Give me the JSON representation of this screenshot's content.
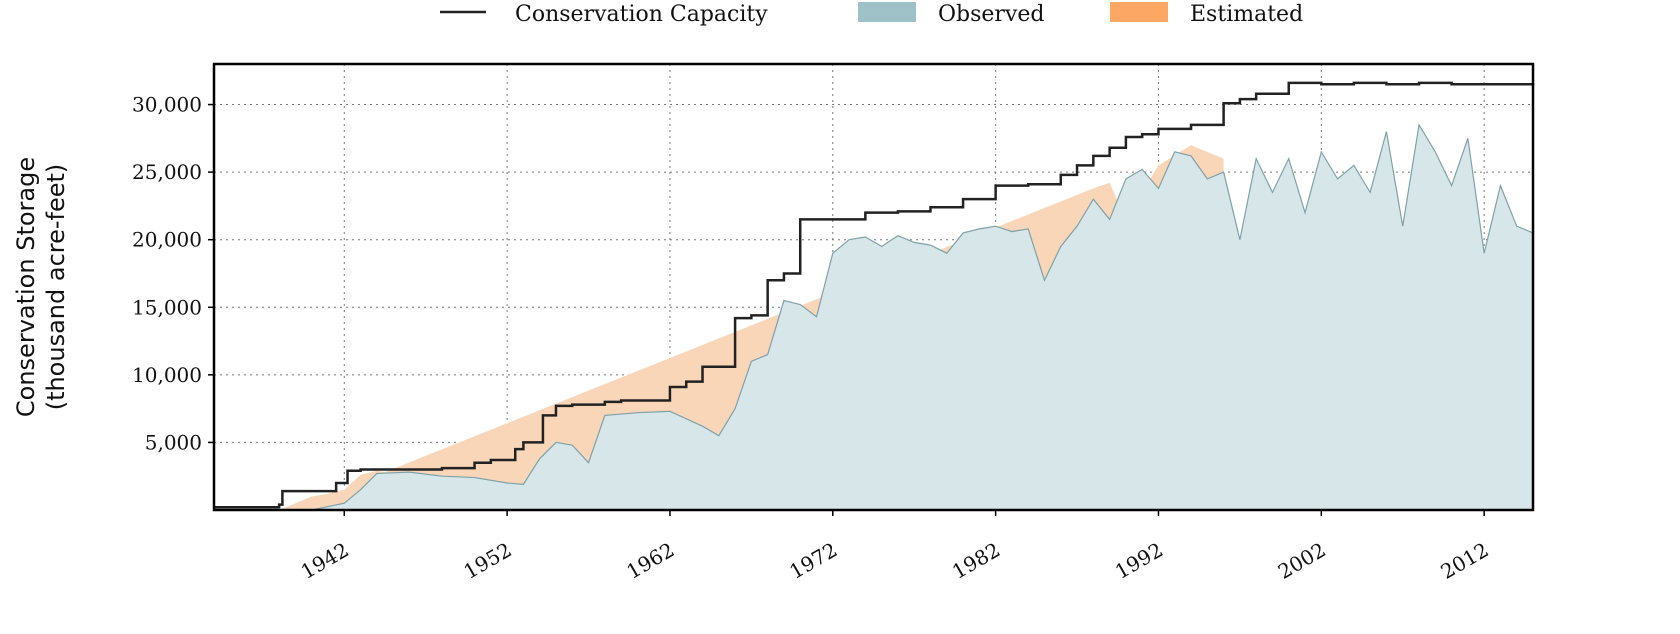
{
  "chart_data": {
    "type": "area",
    "title": "",
    "xlabel": "",
    "ylabel": "Conservation Storage",
    "ylabel_units": "(thousand acre-feet)",
    "xlim": [
      1934,
      2015
    ],
    "ylim": [
      0,
      33000
    ],
    "x_ticks": [
      1942,
      1952,
      1962,
      1972,
      1982,
      1992,
      2002,
      2012
    ],
    "y_ticks": [
      5000,
      10000,
      15000,
      20000,
      25000,
      30000
    ],
    "grid": true,
    "legend_position": "top",
    "colors": {
      "capacity": "#222222",
      "observed_fill": "#d7e6e9",
      "observed_line": "#7fa1a8",
      "observed_legend": "#9fc1c8",
      "estimated_fill": "#f9d6b8",
      "estimated_legend": "#fda764"
    },
    "series": [
      {
        "name": "Conservation Capacity",
        "kind": "step-line",
        "x": [
          1934,
          1938,
          1938.2,
          1941.5,
          1942.2,
          1943,
          1945,
          1948,
          1950,
          1951,
          1952.5,
          1953,
          1954.2,
          1955,
          1956,
          1958,
          1959,
          1962,
          1963,
          1964,
          1966,
          1967,
          1968,
          1969,
          1970,
          1972,
          1974,
          1976,
          1978,
          1980,
          1982,
          1984,
          1986,
          1987,
          1988,
          1989,
          1990,
          1991,
          1992,
          1994,
          1996,
          1997,
          1998,
          2000,
          2002,
          2004,
          2006,
          2008,
          2010,
          2012,
          2015
        ],
        "values": [
          200,
          400,
          1400,
          2000,
          2900,
          3000,
          3000,
          3100,
          3500,
          3700,
          4500,
          5000,
          7000,
          7700,
          7800,
          8000,
          8100,
          9100,
          9500,
          10600,
          14200,
          14400,
          17000,
          17500,
          21500,
          21500,
          22000,
          22100,
          22400,
          23000,
          24000,
          24100,
          24800,
          25500,
          26200,
          26800,
          27600,
          27800,
          28200,
          28500,
          30100,
          30400,
          30800,
          31600,
          31500,
          31600,
          31500,
          31600,
          31500,
          31500,
          31400
        ]
      },
      {
        "name": "Observed",
        "kind": "area",
        "x": [
          1934,
          1940,
          1942,
          1943,
          1944,
          1946,
          1948,
          1950,
          1952,
          1953,
          1954,
          1955,
          1956,
          1957,
          1958,
          1959,
          1960,
          1962,
          1964,
          1965,
          1966,
          1967,
          1968,
          1969,
          1970,
          1971,
          1972,
          1973,
          1974,
          1975,
          1976,
          1977,
          1978,
          1979,
          1980,
          1981,
          1982,
          1983,
          1984,
          1985,
          1986,
          1987,
          1988,
          1989,
          1990,
          1991,
          1992,
          1993,
          1994,
          1995,
          1996,
          1997,
          1998,
          1999,
          2000,
          2001,
          2002,
          2003,
          2004,
          2005,
          2006,
          2007,
          2008,
          2009,
          2010,
          2011,
          2012,
          2013,
          2014,
          2015
        ],
        "values": [
          0,
          0,
          500,
          1500,
          2700,
          2800,
          2500,
          2400,
          2000,
          1900,
          3800,
          5000,
          4800,
          3500,
          7000,
          7100,
          7200,
          7300,
          6200,
          5500,
          7500,
          11000,
          11500,
          15500,
          15200,
          14300,
          19000,
          20000,
          20200,
          19500,
          20300,
          19800,
          19600,
          19000,
          20500,
          20800,
          21000,
          20600,
          20800,
          17000,
          19500,
          21000,
          23000,
          21500,
          24500,
          25200,
          23800,
          26500,
          26200,
          24500,
          25000,
          20000,
          26000,
          23500,
          26000,
          22000,
          26500,
          24500,
          25500,
          23500,
          28000,
          21000,
          28500,
          26500,
          24000,
          27500,
          19000,
          24000,
          21000,
          20500
        ]
      },
      {
        "name": "Estimated",
        "kind": "area",
        "x": [
          1938,
          1940,
          1941,
          1942,
          1943,
          1944,
          1944.5,
          1988,
          1989,
          1990,
          1992,
          1994,
          1996
        ],
        "values": [
          0,
          1000,
          1200,
          1500,
          2600,
          2900,
          2800,
          23800,
          24200,
          21500,
          25500,
          27000,
          26000
        ]
      }
    ]
  }
}
